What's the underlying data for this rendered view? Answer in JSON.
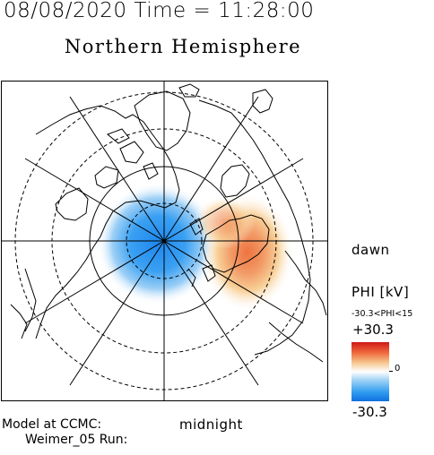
{
  "header": {
    "datetime": "08/08/2020 Time = 11:28:00",
    "title": "Northern Hemisphere"
  },
  "map": {
    "orientation": {
      "right": "dawn",
      "bottom": "midnight"
    },
    "latitude_circles_deg": [
      80,
      70,
      60,
      50
    ],
    "meridian_lines": 6,
    "potential_cells": [
      {
        "sign": "negative",
        "side": "dusk",
        "color": "#1e8cf0"
      },
      {
        "sign": "positive",
        "side": "dawn",
        "color": "#f07a40"
      }
    ]
  },
  "colorbar": {
    "label": "PHI [kV]",
    "range_text": "-30.3<PHI<15",
    "max": "+30.3",
    "mid": "0",
    "min": "-30.3",
    "colors": {
      "max": "#d01818",
      "mid": "#ffffff",
      "min": "#1070e0"
    }
  },
  "footer": {
    "line1": "Model at CCMC:",
    "line2": "Weimer_05 Run:"
  }
}
